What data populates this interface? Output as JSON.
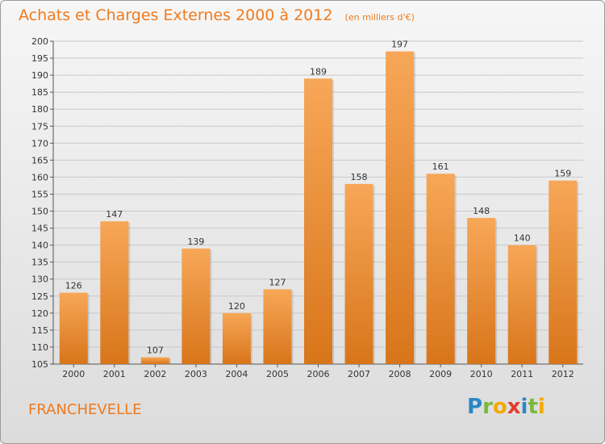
{
  "title": "Achats et Charges Externes 2000 à 2012",
  "unit_note": "(en milliers d'€)",
  "place_name": "FRANCHEVELLE",
  "logo": {
    "letters": [
      "P",
      "r",
      "o",
      "x",
      "i",
      "t",
      "i"
    ],
    "colors": [
      "#2b86c7",
      "#7ab83a",
      "#f2a900",
      "#e33b2e",
      "#2b86c7",
      "#7ab83a",
      "#f2a900"
    ]
  },
  "colors": {
    "accent": "#f07a1c",
    "bar_light": "#f7a758",
    "bar_dark": "#d8751a"
  },
  "chart_data": {
    "type": "bar",
    "categories": [
      "2000",
      "2001",
      "2002",
      "2003",
      "2004",
      "2005",
      "2006",
      "2007",
      "2008",
      "2009",
      "2010",
      "2011",
      "2012"
    ],
    "values": [
      126,
      147,
      107,
      139,
      120,
      127,
      189,
      158,
      197,
      161,
      148,
      140,
      159
    ],
    "ylim": [
      105,
      200
    ],
    "yticks": [
      105,
      110,
      115,
      120,
      125,
      130,
      135,
      140,
      145,
      150,
      155,
      160,
      165,
      170,
      175,
      180,
      185,
      190,
      195,
      200
    ],
    "grid": true,
    "legend": "none"
  }
}
